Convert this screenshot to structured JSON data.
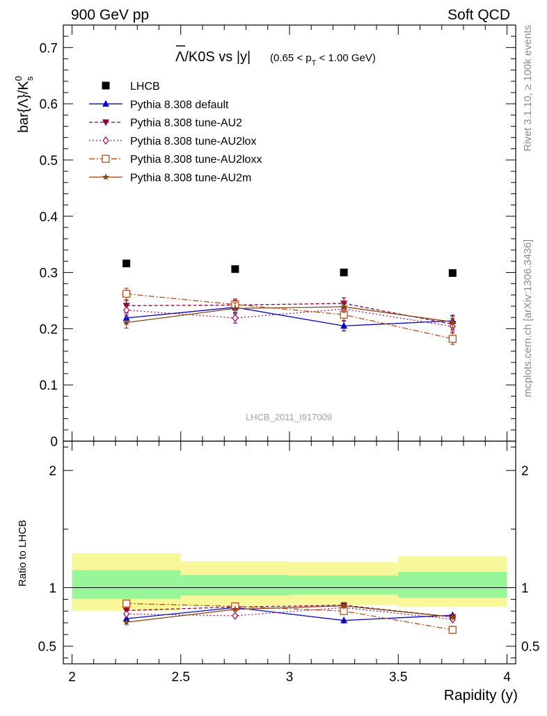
{
  "header": {
    "left": "900 GeV pp",
    "right": "Soft QCD"
  },
  "side_text": {
    "rivet": "Rivet 3.1.10, ≥ 100k events",
    "mcplots": "mcplots.cern.ch [arXiv:1306.3436]"
  },
  "watermark": "LHCB_2011_I917009",
  "chart_data": [
    {
      "type": "scatter",
      "panel": "main",
      "title_main": "Λ/K0S vs |y|",
      "title_main_overbar": "Λ",
      "title_main_rest": "/K0S vs |y|",
      "title_sub": "(0.65 < p",
      "title_sub_index": "T",
      "title_sub_end": " < 1.00 GeV)",
      "ylabel": "bar{Λ}/K",
      "ylabel_sup": "0",
      "ylabel_sub": "s",
      "ylim": [
        0,
        0.74
      ],
      "yticks": [
        0,
        0.1,
        0.2,
        0.3,
        0.4,
        0.5,
        0.6,
        0.7
      ],
      "ytick_labels": [
        "0",
        "0.1",
        "0.2",
        "0.3",
        "0.4",
        "0.5",
        "0.6",
        "0.7"
      ],
      "xlim": [
        1.96,
        4.04
      ],
      "x": [
        2.25,
        2.75,
        3.25,
        3.75
      ],
      "x_bin_edges": [
        2.0,
        2.5,
        3.0,
        3.5,
        4.0
      ],
      "legend_position": "top-left",
      "series": [
        {
          "name": "LHCB",
          "color": "#000000",
          "marker": "square",
          "style": "none",
          "values": [
            0.316,
            0.306,
            0.3,
            0.299
          ],
          "errors": [
            0.003,
            0.003,
            0.003,
            0.003
          ]
        },
        {
          "name": "Pythia 8.308 default",
          "color": "#0000cc",
          "marker": "triangle-up",
          "style": "solid",
          "values": [
            0.219,
            0.238,
            0.205,
            0.214
          ],
          "errors": [
            0.009,
            0.009,
            0.009,
            0.01
          ]
        },
        {
          "name": "Pythia 8.308 tune-AU2",
          "color": "#8b0038",
          "marker": "triangle-down",
          "style": "dashed",
          "values": [
            0.241,
            0.242,
            0.245,
            0.208
          ],
          "errors": [
            0.009,
            0.009,
            0.01,
            0.01
          ]
        },
        {
          "name": "Pythia 8.308 tune-AU2lox",
          "color": "#a0125a",
          "marker": "diamond-open",
          "style": "dotted",
          "values": [
            0.233,
            0.219,
            0.235,
            0.204
          ],
          "errors": [
            0.009,
            0.009,
            0.009,
            0.01
          ]
        },
        {
          "name": "Pythia 8.308 tune-AU2loxx",
          "color": "#c04a10",
          "marker": "square-open",
          "style": "dashdot",
          "values": [
            0.262,
            0.243,
            0.225,
            0.182
          ],
          "errors": [
            0.01,
            0.01,
            0.01,
            0.01
          ]
        },
        {
          "name": "Pythia 8.308 tune-AU2m",
          "color": "#8b4513",
          "marker": "star",
          "style": "solid",
          "values": [
            0.211,
            0.236,
            0.239,
            0.212
          ],
          "errors": [
            0.01,
            0.01,
            0.01,
            0.01
          ]
        }
      ]
    },
    {
      "type": "scatter",
      "panel": "ratio",
      "ylabel": "Ratio to LHCB",
      "xlabel": "Rapidity (y)",
      "ylim": [
        0.35,
        2.25
      ],
      "yticks": [
        0.5,
        1,
        2
      ],
      "ytick_labels": [
        "0.5",
        "1",
        "2"
      ],
      "xticks": [
        2,
        2.5,
        3,
        3.5,
        4
      ],
      "xtick_labels": [
        "2",
        "2.5",
        "3",
        "3.5",
        "4"
      ],
      "x": [
        2.25,
        2.75,
        3.25,
        3.75
      ],
      "reference_band": {
        "inner_color": "#98f598",
        "outer_color": "#f8f89a",
        "inner_low": [
          0.905,
          0.932,
          0.94,
          0.915
        ],
        "inner_high": [
          1.15,
          1.108,
          1.103,
          1.135
        ],
        "outer_low": [
          0.8,
          0.845,
          0.85,
          0.835
        ],
        "outer_high": [
          1.295,
          1.225,
          1.218,
          1.268
        ]
      },
      "series": [
        {
          "name": "Pythia 8.308 default",
          "values": [
            0.735,
            0.83,
            0.72,
            0.765
          ],
          "errors": [
            0.03,
            0.03,
            0.03,
            0.03
          ]
        },
        {
          "name": "Pythia 8.308 tune-AU2",
          "values": [
            0.805,
            0.835,
            0.85,
            0.75
          ],
          "errors": [
            0.03,
            0.03,
            0.03,
            0.03
          ]
        },
        {
          "name": "Pythia 8.308 tune-AU2lox",
          "values": [
            0.775,
            0.76,
            0.83,
            0.73
          ],
          "errors": [
            0.03,
            0.03,
            0.03,
            0.03
          ]
        },
        {
          "name": "Pythia 8.308 tune-AU2loxx",
          "values": [
            0.865,
            0.84,
            0.8,
            0.64
          ],
          "errors": [
            0.03,
            0.03,
            0.03,
            0.035
          ]
        },
        {
          "name": "Pythia 8.308 tune-AU2m",
          "values": [
            0.705,
            0.815,
            0.845,
            0.75
          ],
          "errors": [
            0.03,
            0.03,
            0.03,
            0.03
          ]
        }
      ]
    }
  ]
}
